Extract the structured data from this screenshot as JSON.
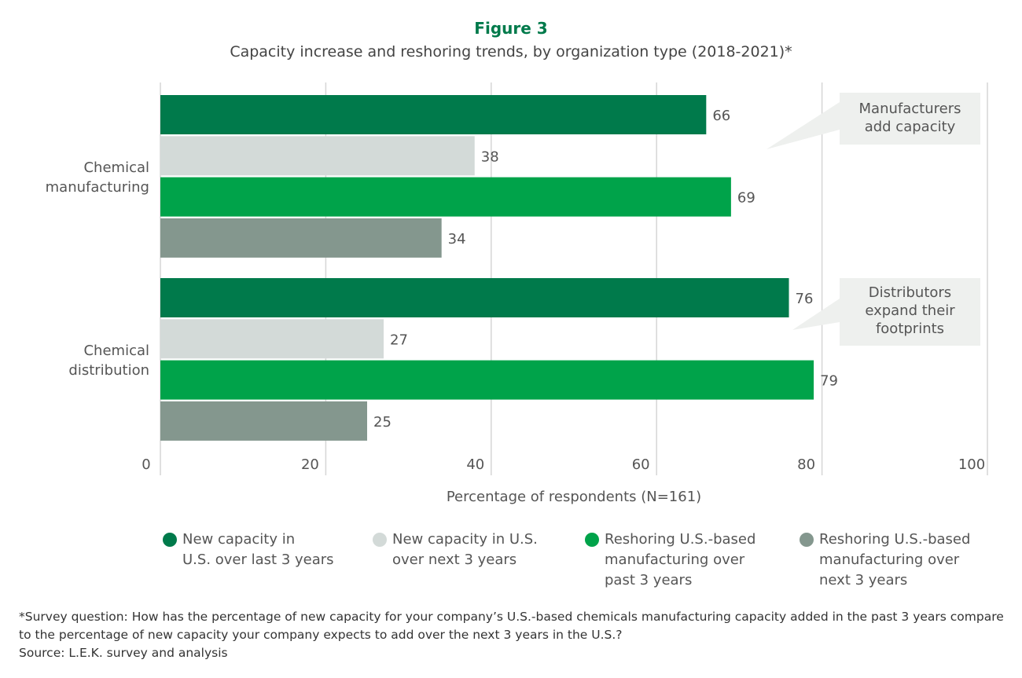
{
  "chart_data": {
    "type": "bar",
    "orientation": "horizontal",
    "title": "Figure 3",
    "subtitle": "Capacity increase and reshoring trends, by organization type (2018-2021)*",
    "categories": [
      "Chemical manufacturing",
      "Chemical distribution"
    ],
    "series": [
      {
        "name": "New capacity in U.S. over last 3 years",
        "color": "#007a4b",
        "values": [
          66,
          76
        ]
      },
      {
        "name": "New capacity in U.S. over next 3 years",
        "color": "#d3dad8",
        "values": [
          38,
          27
        ]
      },
      {
        "name": "Reshoring U.S.-based manufacturing over past 3 years",
        "color": "#00a34a",
        "values": [
          69,
          79
        ]
      },
      {
        "name": "Reshoring U.S.-based manufacturing over next 3 years",
        "color": "#84978e",
        "values": [
          34,
          25
        ]
      }
    ],
    "xlabel": "Percentage of respondents (N=161)",
    "xlim": [
      0,
      100
    ],
    "xticks": [
      0,
      20,
      40,
      60,
      80,
      100
    ],
    "grid": true,
    "legend_position": "bottom",
    "annotations": [
      "Manufacturers add capacity",
      "Distributors expand their footprints"
    ]
  },
  "legend_lines": [
    [
      "New capacity in",
      "U.S. over last 3 years"
    ],
    [
      "New capacity in U.S.",
      "over next 3 years"
    ],
    [
      "Reshoring U.S.-based",
      "manufacturing over",
      "past 3 years"
    ],
    [
      "Reshoring U.S.-based",
      "manufacturing over",
      "next 3 years"
    ]
  ],
  "category_lines": [
    [
      "Chemical",
      "manufacturing"
    ],
    [
      "Chemical",
      "distribution"
    ]
  ],
  "annotation_lines": [
    [
      "Manufacturers",
      "add capacity"
    ],
    [
      "Distributors",
      "expand their",
      "footprints"
    ]
  ],
  "footnote": "*Survey question: How has the percentage of new capacity for your company’s U.S.-based chemicals manufacturing capacity added in the past 3 years compare to the percentage of new capacity your company expects to add over the next 3 years in the U.S.?",
  "source": "Source: L.E.K. survey and analysis"
}
